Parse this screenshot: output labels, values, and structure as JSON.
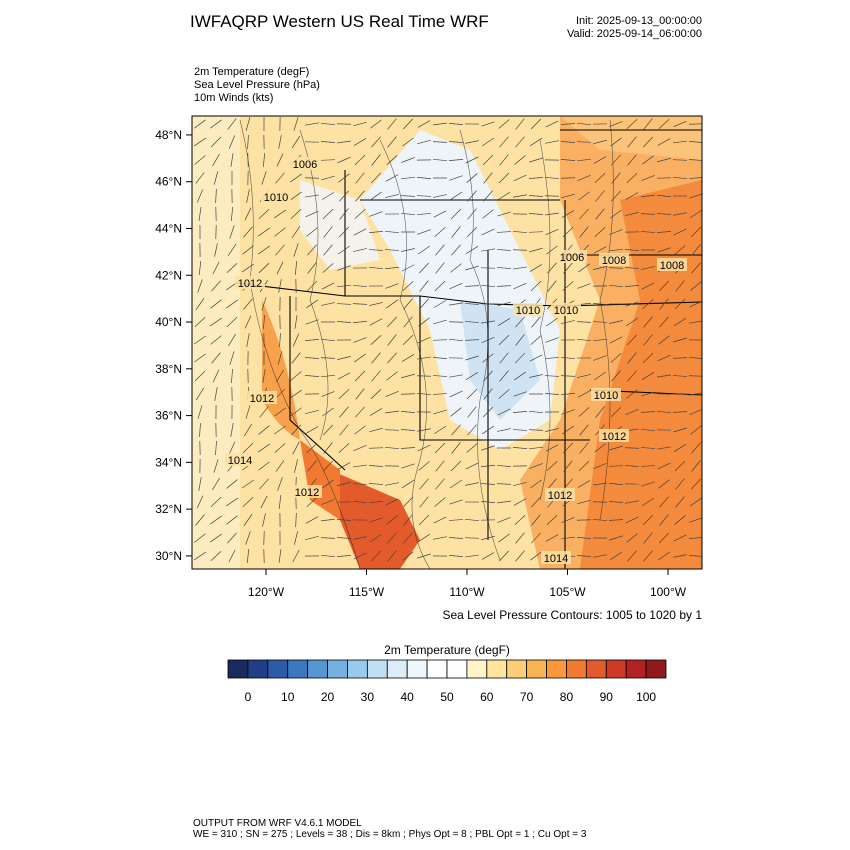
{
  "header": {
    "title": "IWFAQRP Western US Real Time WRF",
    "init": "Init: 2025-09-13_00:00:00",
    "valid": "Valid: 2025-09-14_06:00:00"
  },
  "fields": [
    "2m Temperature   (degF)",
    "Sea Level Pressure   (hPa)",
    "10m Winds   (kts)"
  ],
  "map": {
    "xlim": [
      -123.68,
      -98.31
    ],
    "ylim": [
      29.44,
      48.81
    ],
    "xticks": [
      {
        "value": -120,
        "label": "120°W"
      },
      {
        "value": -115,
        "label": "115°W"
      },
      {
        "value": -110,
        "label": "110°W"
      },
      {
        "value": -105,
        "label": "105°W"
      },
      {
        "value": -100,
        "label": "100°W"
      }
    ],
    "yticks": [
      {
        "value": 30,
        "label": "30°N"
      },
      {
        "value": 32,
        "label": "32°N"
      },
      {
        "value": 34,
        "label": "34°N"
      },
      {
        "value": 36,
        "label": "36°N"
      },
      {
        "value": 38,
        "label": "38°N"
      },
      {
        "value": 40,
        "label": "40°N"
      },
      {
        "value": 42,
        "label": "42°N"
      },
      {
        "value": 44,
        "label": "44°N"
      },
      {
        "value": 46,
        "label": "46°N"
      },
      {
        "value": 48,
        "label": "48°N"
      }
    ],
    "contour_labels": [
      1006,
      1010,
      1012,
      1012,
      1014,
      1012,
      1006,
      1008,
      1008,
      1010,
      1010,
      1010,
      1012,
      1012,
      1014
    ],
    "contour_note": "Sea Level Pressure Contours: 1005 to 1020 by 1"
  },
  "colorbar": {
    "title": "2m Temperature  (degF)",
    "lim": [
      -5,
      105
    ],
    "ticks": [
      0,
      10,
      20,
      30,
      40,
      50,
      60,
      70,
      80,
      90,
      100
    ],
    "colors": [
      "#1b2a5c",
      "#213f88",
      "#2d5ca6",
      "#3b78bf",
      "#5597d1",
      "#74b1e0",
      "#99cbec",
      "#bfe0f4",
      "#dcedf8",
      "#eef7fc",
      "#ffffff",
      "#ffffff",
      "#fff4c8",
      "#fee49c",
      "#fdce78",
      "#fbb454",
      "#f8993b",
      "#f17a30",
      "#e35a2b",
      "#cf3a28",
      "#b42125",
      "#921a1f"
    ]
  },
  "footer": [
    "OUTPUT FROM WRF V4.6.1 MODEL",
    "WE = 310 ; SN = 275 ; Levels = 38 ; Dis = 8km ; Phys Opt = 8 ; PBL Opt = 1 ; Cu Opt = 3"
  ]
}
